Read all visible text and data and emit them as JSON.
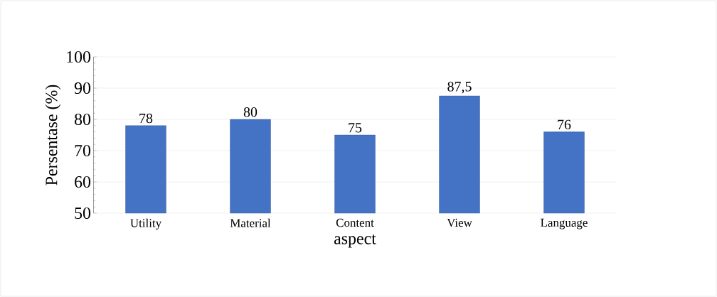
{
  "chart_data": {
    "type": "bar",
    "xlabel": "aspect",
    "ylabel": "Persentase (%)",
    "categories": [
      "Utility",
      "Material",
      "Content",
      "View",
      "Language"
    ],
    "values": [
      78,
      80,
      75,
      87.5,
      76
    ],
    "value_labels": [
      "78",
      "80",
      "75",
      "87,5",
      "76"
    ],
    "color": "#4472c4",
    "ylim": [
      50,
      100
    ],
    "yticks": [
      50,
      60,
      70,
      80,
      90,
      100
    ],
    "grid": "y"
  }
}
